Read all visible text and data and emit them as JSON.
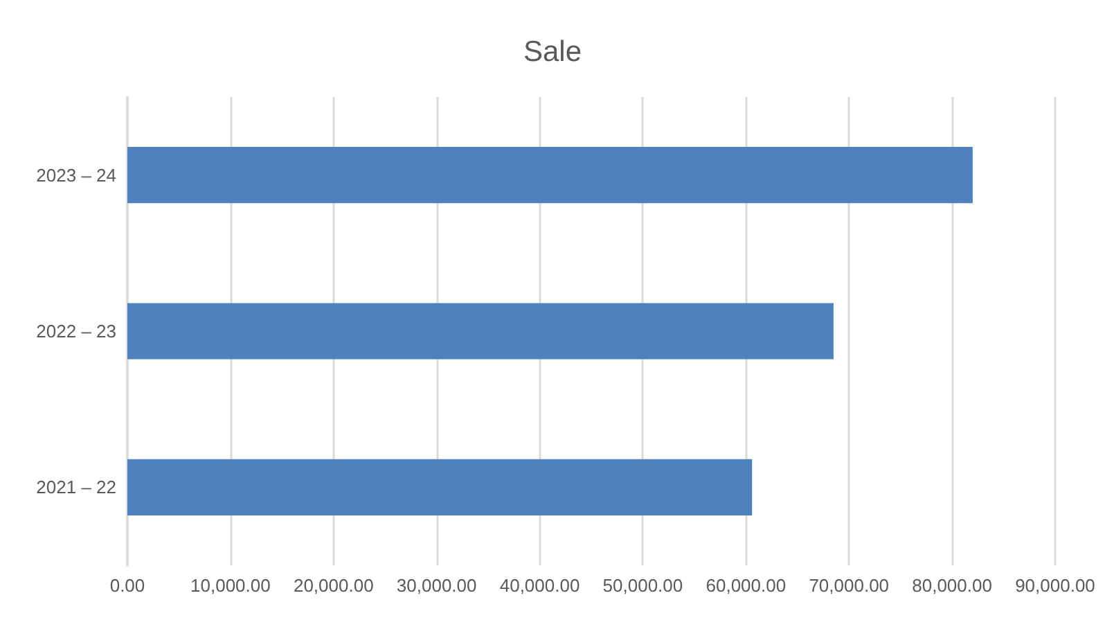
{
  "chart_data": {
    "type": "bar",
    "orientation": "horizontal",
    "title": "Sale",
    "categories": [
      "2023 – 24",
      "2022 – 23",
      "2021 – 22"
    ],
    "values": [
      82000,
      68500,
      60600
    ],
    "color": "#4f81bd",
    "xlim": [
      0,
      90000
    ],
    "xticks": [
      {
        "value": 0,
        "label": "0.00"
      },
      {
        "value": 10000,
        "label": "10,000.00"
      },
      {
        "value": 20000,
        "label": "20,000.00"
      },
      {
        "value": 30000,
        "label": "30,000.00"
      },
      {
        "value": 40000,
        "label": "40,000.00"
      },
      {
        "value": 50000,
        "label": "50,000.00"
      },
      {
        "value": 60000,
        "label": "60,000.00"
      },
      {
        "value": 70000,
        "label": "70,000.00"
      },
      {
        "value": 80000,
        "label": "80,000.00"
      },
      {
        "value": 90000,
        "label": "90,000.00"
      }
    ],
    "grid": "x"
  }
}
